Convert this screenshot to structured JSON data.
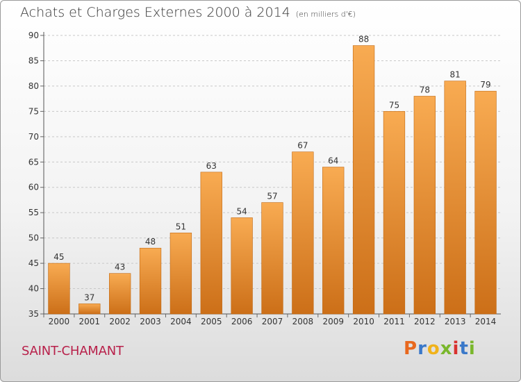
{
  "header": {
    "title": "Achats et Charges Externes 2000 à 2014",
    "subtitle": "(en milliers d'€)"
  },
  "footer": {
    "commune": "SAINT-CHAMANT",
    "brand": "Proxiti",
    "brand_colors": [
      "#e8681e",
      "#3a78c9",
      "#f0b21a",
      "#7ab72c",
      "#d8322f",
      "#3a78c9",
      "#7ab72c"
    ]
  },
  "colors": {
    "bar_light": "#f7a84f",
    "bar_dark": "#cc6f18",
    "grid": "#c8c8c8",
    "axis_text": "#333333"
  },
  "chart_data": {
    "type": "bar",
    "title": "Achats et Charges Externes 2000 à 2014",
    "subtitle": "(en milliers d'€)",
    "categories": [
      "2000",
      "2001",
      "2002",
      "2003",
      "2004",
      "2005",
      "2006",
      "2007",
      "2008",
      "2009",
      "2010",
      "2011",
      "2012",
      "2013",
      "2014"
    ],
    "values": [
      45,
      37,
      43,
      48,
      51,
      63,
      54,
      57,
      67,
      64,
      88,
      75,
      78,
      81,
      79
    ],
    "ylim": [
      35,
      90
    ],
    "yticks": [
      35,
      40,
      45,
      50,
      55,
      60,
      65,
      70,
      75,
      80,
      85,
      90
    ],
    "grid": true,
    "data_labels": true
  }
}
